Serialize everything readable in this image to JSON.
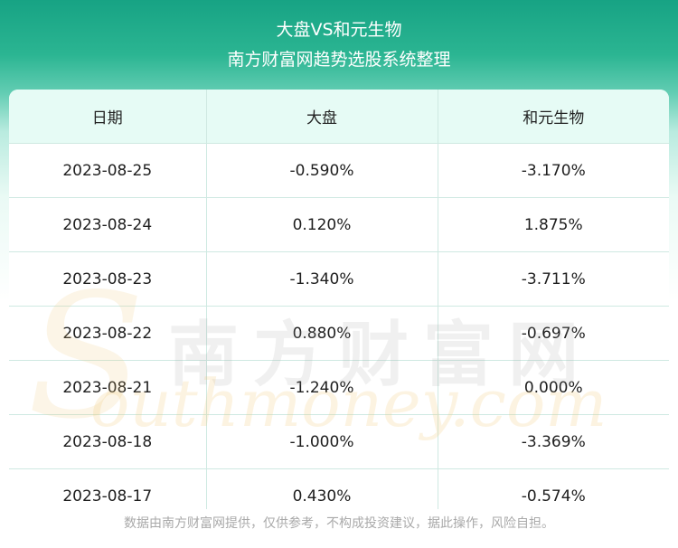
{
  "header": {
    "title": "大盘VS和元生物",
    "subtitle": "南方财富网趋势选股系统整理"
  },
  "table": {
    "columns": [
      "日期",
      "大盘",
      "和元生物"
    ],
    "rows": [
      [
        "2023-08-25",
        "-0.590%",
        "-3.170%"
      ],
      [
        "2023-08-24",
        "0.120%",
        "1.875%"
      ],
      [
        "2023-08-23",
        "-1.340%",
        "-3.711%"
      ],
      [
        "2023-08-22",
        "0.880%",
        "-0.697%"
      ],
      [
        "2023-08-21",
        "-1.240%",
        "0.000%"
      ],
      [
        "2023-08-18",
        "-1.000%",
        "-3.369%"
      ],
      [
        "2023-08-17",
        "0.430%",
        "-0.574%"
      ]
    ]
  },
  "watermark": {
    "cn": "南方财富网",
    "s": "S",
    "en": "outhmoney.com"
  },
  "footer": {
    "disclaimer": "数据由南方财富网提供，仅供参考，不构成投资建议，据此操作，风险自担。"
  },
  "colors": {
    "header_green": "#17a384",
    "table_header_bg": "#e6fbf5",
    "grid_line": "#cfe9e2"
  }
}
